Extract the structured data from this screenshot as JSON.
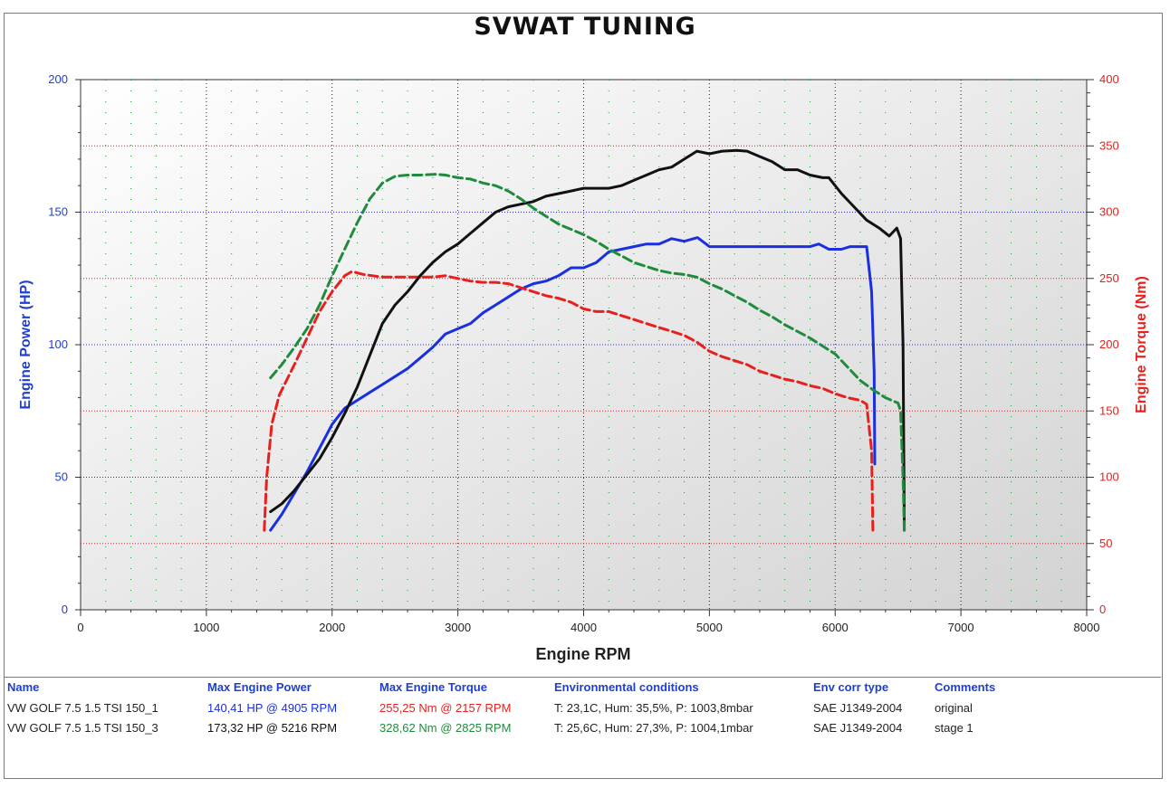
{
  "chart_data": {
    "type": "line",
    "title": "SVWAT TUNING",
    "xlabel": "Engine RPM",
    "ylabel_left": "Engine Power (HP)",
    "ylabel_right": "Engine Torque (Nm)",
    "xlim": [
      0,
      8000
    ],
    "ylim_left": [
      0,
      200
    ],
    "ylim_right": [
      0,
      400
    ],
    "x_ticks": [
      "0",
      "1000",
      "2000",
      "3000",
      "4000",
      "5000",
      "6000",
      "7000",
      "8000"
    ],
    "y_left_ticks": [
      "0",
      "50",
      "100",
      "150",
      "200"
    ],
    "y_right_ticks": [
      "0",
      "50",
      "100",
      "150",
      "200",
      "250",
      "300",
      "350",
      "400"
    ],
    "grid": true,
    "series": [
      {
        "name": "VW GOLF 7.5 1.5 TSI 150_1",
        "measure": "power",
        "axis": "left",
        "style": "solid",
        "color": "#1a2fe0",
        "points": [
          [
            1510,
            30
          ],
          [
            1600,
            36
          ],
          [
            1700,
            44
          ],
          [
            1800,
            52
          ],
          [
            1900,
            61
          ],
          [
            2000,
            70
          ],
          [
            2100,
            76
          ],
          [
            2200,
            79
          ],
          [
            2300,
            82
          ],
          [
            2400,
            85
          ],
          [
            2500,
            88
          ],
          [
            2600,
            91
          ],
          [
            2700,
            95
          ],
          [
            2800,
            99
          ],
          [
            2900,
            104
          ],
          [
            3000,
            106
          ],
          [
            3100,
            108
          ],
          [
            3200,
            112
          ],
          [
            3300,
            115
          ],
          [
            3400,
            118
          ],
          [
            3500,
            121
          ],
          [
            3600,
            123
          ],
          [
            3700,
            124
          ],
          [
            3800,
            126
          ],
          [
            3900,
            129
          ],
          [
            4000,
            129
          ],
          [
            4100,
            131
          ],
          [
            4200,
            135
          ],
          [
            4300,
            136
          ],
          [
            4400,
            137
          ],
          [
            4500,
            138
          ],
          [
            4600,
            138
          ],
          [
            4700,
            140
          ],
          [
            4800,
            139
          ],
          [
            4905,
            140.4
          ],
          [
            5000,
            137
          ],
          [
            5100,
            137
          ],
          [
            5200,
            137
          ],
          [
            5400,
            137
          ],
          [
            5600,
            137
          ],
          [
            5800,
            137
          ],
          [
            5870,
            138
          ],
          [
            5950,
            136
          ],
          [
            6050,
            136
          ],
          [
            6120,
            137
          ],
          [
            6250,
            137
          ],
          [
            6290,
            120
          ],
          [
            6310,
            90
          ],
          [
            6315,
            55
          ]
        ]
      },
      {
        "name": "VW GOLF 7.5 1.5 TSI 150_1",
        "measure": "torque",
        "axis": "right",
        "style": "dashed",
        "color": "#e8201d",
        "points": [
          [
            1460,
            60
          ],
          [
            1480,
            100
          ],
          [
            1520,
            140
          ],
          [
            1580,
            162
          ],
          [
            1700,
            185
          ],
          [
            1800,
            205
          ],
          [
            1900,
            225
          ],
          [
            2000,
            240
          ],
          [
            2100,
            252
          ],
          [
            2157,
            255.2
          ],
          [
            2250,
            253
          ],
          [
            2400,
            251
          ],
          [
            2600,
            251
          ],
          [
            2800,
            251
          ],
          [
            2900,
            252
          ],
          [
            3000,
            250
          ],
          [
            3100,
            248
          ],
          [
            3200,
            247
          ],
          [
            3300,
            247
          ],
          [
            3400,
            246
          ],
          [
            3500,
            243
          ],
          [
            3600,
            240
          ],
          [
            3700,
            237
          ],
          [
            3800,
            235
          ],
          [
            3900,
            232
          ],
          [
            4000,
            227
          ],
          [
            4100,
            225
          ],
          [
            4200,
            225
          ],
          [
            4300,
            222
          ],
          [
            4400,
            219
          ],
          [
            4500,
            216
          ],
          [
            4600,
            213
          ],
          [
            4700,
            210
          ],
          [
            4800,
            207
          ],
          [
            4900,
            202
          ],
          [
            5000,
            195
          ],
          [
            5100,
            191
          ],
          [
            5200,
            188
          ],
          [
            5300,
            185
          ],
          [
            5400,
            180
          ],
          [
            5500,
            177
          ],
          [
            5600,
            174
          ],
          [
            5700,
            172
          ],
          [
            5800,
            169
          ],
          [
            5900,
            167
          ],
          [
            6000,
            163
          ],
          [
            6100,
            160
          ],
          [
            6200,
            158
          ],
          [
            6250,
            155
          ],
          [
            6290,
            120
          ],
          [
            6300,
            60
          ]
        ]
      },
      {
        "name": "VW GOLF 7.5 1.5 TSI 150_3",
        "measure": "power",
        "axis": "left",
        "style": "solid",
        "color": "#111111",
        "points": [
          [
            1510,
            37
          ],
          [
            1600,
            40
          ],
          [
            1700,
            45
          ],
          [
            1800,
            51
          ],
          [
            1900,
            57
          ],
          [
            2000,
            65
          ],
          [
            2100,
            74
          ],
          [
            2200,
            84
          ],
          [
            2300,
            96
          ],
          [
            2400,
            108
          ],
          [
            2500,
            115
          ],
          [
            2600,
            120
          ],
          [
            2700,
            126
          ],
          [
            2800,
            131
          ],
          [
            2900,
            135
          ],
          [
            3000,
            138
          ],
          [
            3100,
            142
          ],
          [
            3200,
            146
          ],
          [
            3300,
            150
          ],
          [
            3400,
            152
          ],
          [
            3500,
            153
          ],
          [
            3600,
            154
          ],
          [
            3700,
            156
          ],
          [
            3800,
            157
          ],
          [
            3900,
            158
          ],
          [
            4000,
            159
          ],
          [
            4100,
            159
          ],
          [
            4200,
            159
          ],
          [
            4300,
            160
          ],
          [
            4400,
            162
          ],
          [
            4500,
            164
          ],
          [
            4600,
            166
          ],
          [
            4700,
            167
          ],
          [
            4800,
            170
          ],
          [
            4900,
            173
          ],
          [
            5000,
            172
          ],
          [
            5100,
            173
          ],
          [
            5216,
            173.3
          ],
          [
            5300,
            173
          ],
          [
            5400,
            171
          ],
          [
            5500,
            169
          ],
          [
            5600,
            166
          ],
          [
            5700,
            166
          ],
          [
            5800,
            164
          ],
          [
            5900,
            163
          ],
          [
            5950,
            163
          ],
          [
            6050,
            157
          ],
          [
            6150,
            152
          ],
          [
            6250,
            147
          ],
          [
            6350,
            144
          ],
          [
            6430,
            141
          ],
          [
            6490,
            144
          ],
          [
            6520,
            140
          ],
          [
            6540,
            100
          ],
          [
            6550,
            30
          ]
        ]
      },
      {
        "name": "VW GOLF 7.5 1.5 TSI 150_3",
        "measure": "torque",
        "axis": "right",
        "style": "dashed",
        "color": "#1f8b3d",
        "points": [
          [
            1510,
            175
          ],
          [
            1600,
            185
          ],
          [
            1700,
            198
          ],
          [
            1800,
            212
          ],
          [
            1900,
            230
          ],
          [
            2000,
            252
          ],
          [
            2100,
            272
          ],
          [
            2200,
            292
          ],
          [
            2300,
            310
          ],
          [
            2400,
            322
          ],
          [
            2500,
            327
          ],
          [
            2600,
            328
          ],
          [
            2700,
            328
          ],
          [
            2825,
            328.6
          ],
          [
            2900,
            328
          ],
          [
            3000,
            326
          ],
          [
            3100,
            325
          ],
          [
            3200,
            322
          ],
          [
            3300,
            320
          ],
          [
            3400,
            316
          ],
          [
            3500,
            310
          ],
          [
            3600,
            303
          ],
          [
            3700,
            297
          ],
          [
            3800,
            291
          ],
          [
            3900,
            287
          ],
          [
            4000,
            283
          ],
          [
            4100,
            278
          ],
          [
            4200,
            272
          ],
          [
            4300,
            267
          ],
          [
            4400,
            262
          ],
          [
            4500,
            259
          ],
          [
            4600,
            256
          ],
          [
            4700,
            254
          ],
          [
            4800,
            253
          ],
          [
            4900,
            251
          ],
          [
            5000,
            246
          ],
          [
            5100,
            242
          ],
          [
            5200,
            237
          ],
          [
            5300,
            232
          ],
          [
            5400,
            226
          ],
          [
            5500,
            221
          ],
          [
            5600,
            215
          ],
          [
            5700,
            210
          ],
          [
            5800,
            205
          ],
          [
            5900,
            199
          ],
          [
            6000,
            193
          ],
          [
            6100,
            183
          ],
          [
            6200,
            173
          ],
          [
            6300,
            166
          ],
          [
            6400,
            160
          ],
          [
            6500,
            156
          ],
          [
            6520,
            150
          ],
          [
            6540,
            100
          ],
          [
            6550,
            60
          ]
        ]
      }
    ]
  },
  "legend_table": {
    "headers": [
      "Name",
      "Max Engine Power",
      "Max Engine Torque",
      "Environmental conditions",
      "Env corr type",
      "Comments"
    ],
    "rows": [
      {
        "name": "VW GOLF 7.5 1.5 TSI 150_1",
        "power": "140,41 HP @ 4905 RPM",
        "power_color": "#1a2fe0",
        "torque": "255,25 Nm @ 2157 RPM",
        "torque_color": "#e8201d",
        "env": "T: 23,1C, Hum: 35,5%, P: 1003,8mbar",
        "corr": "SAE J1349-2004",
        "comment": "original"
      },
      {
        "name": "VW GOLF 7.5 1.5 TSI 150_3",
        "power": "173,32 HP @ 5216 RPM",
        "power_color": "#111111",
        "torque": "328,62 Nm @ 2825 RPM",
        "torque_color": "#1f8b3d",
        "env": "T: 25,6C, Hum: 27,3%, P: 1004,1mbar",
        "corr": "SAE J1349-2004",
        "comment": "stage 1"
      }
    ]
  }
}
